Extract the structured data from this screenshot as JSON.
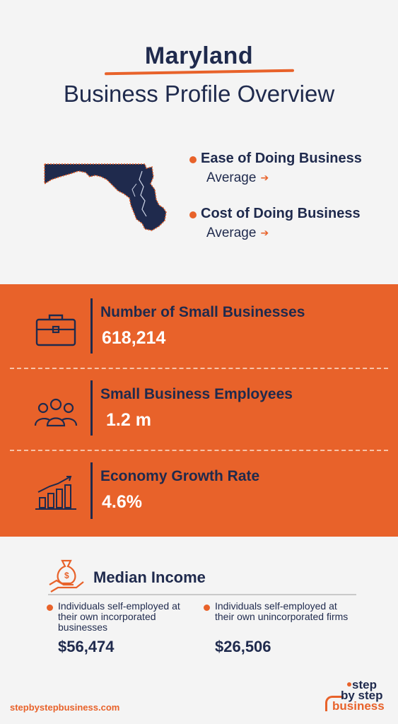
{
  "header": {
    "title": "Maryland",
    "subtitle": "Business Profile Overview"
  },
  "rankings": [
    {
      "label": "Ease of Doing Business",
      "value": "Average"
    },
    {
      "label": "Cost of Doing Business",
      "value": "Average"
    }
  ],
  "stats": [
    {
      "label": "Number of Small Businesses",
      "value": "618,214",
      "icon": "briefcase-icon"
    },
    {
      "label": "Small Business Employees",
      "value": "1.2 m",
      "icon": "people-group-icon"
    },
    {
      "label": "Economy Growth Rate",
      "value": "4.6%",
      "icon": "growth-chart-icon"
    }
  ],
  "income": {
    "title": "Median Income",
    "icon": "money-bag-hand-icon",
    "items": [
      {
        "desc": "Individuals self-employed at their own incorporated businesses",
        "amount": "$56,474"
      },
      {
        "desc": "Individuals self-employed at their own unincorporated firms",
        "amount": "$26,506"
      }
    ]
  },
  "footer": {
    "url": "stepbystepbusiness.com",
    "logo_line1": "step",
    "logo_line2": "by step",
    "logo_line3": "business"
  },
  "colors": {
    "accent": "#e8622a",
    "navy": "#1f2a4d",
    "background": "#f4f4f4"
  }
}
